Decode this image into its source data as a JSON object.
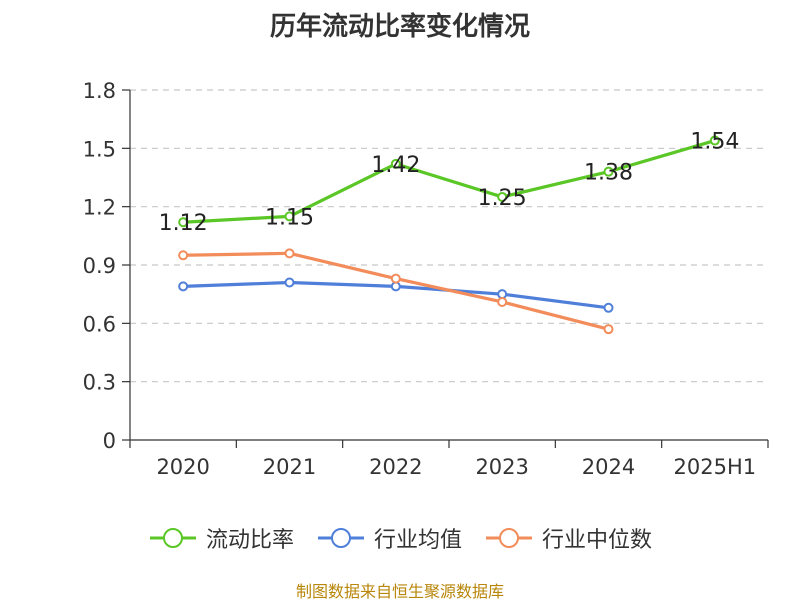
{
  "chart_data": {
    "type": "line",
    "title": "历年流动比率变化情况",
    "categories": [
      "2020",
      "2021",
      "2022",
      "2023",
      "2024",
      "2025H1"
    ],
    "series": [
      {
        "name": "流动比率",
        "values": [
          1.12,
          1.15,
          1.42,
          1.25,
          1.38,
          1.54
        ],
        "color": "#5bc726",
        "show_labels": true
      },
      {
        "name": "行业均值",
        "values": [
          0.79,
          0.81,
          0.79,
          0.75,
          0.68,
          null
        ],
        "color": "#4f7fd9",
        "show_labels": false
      },
      {
        "name": "行业中位数",
        "values": [
          0.95,
          0.96,
          0.83,
          0.71,
          0.57,
          null
        ],
        "color": "#f28c5a",
        "show_labels": false
      }
    ],
    "ylim": [
      0,
      1.8
    ],
    "yticks": [
      "0",
      "0.3",
      "0.6",
      "0.9",
      "1.2",
      "1.5",
      "1.8"
    ],
    "grid": true,
    "legend_position": "bottom"
  },
  "footer": {
    "source": "制图数据来自恒生聚源数据库"
  }
}
